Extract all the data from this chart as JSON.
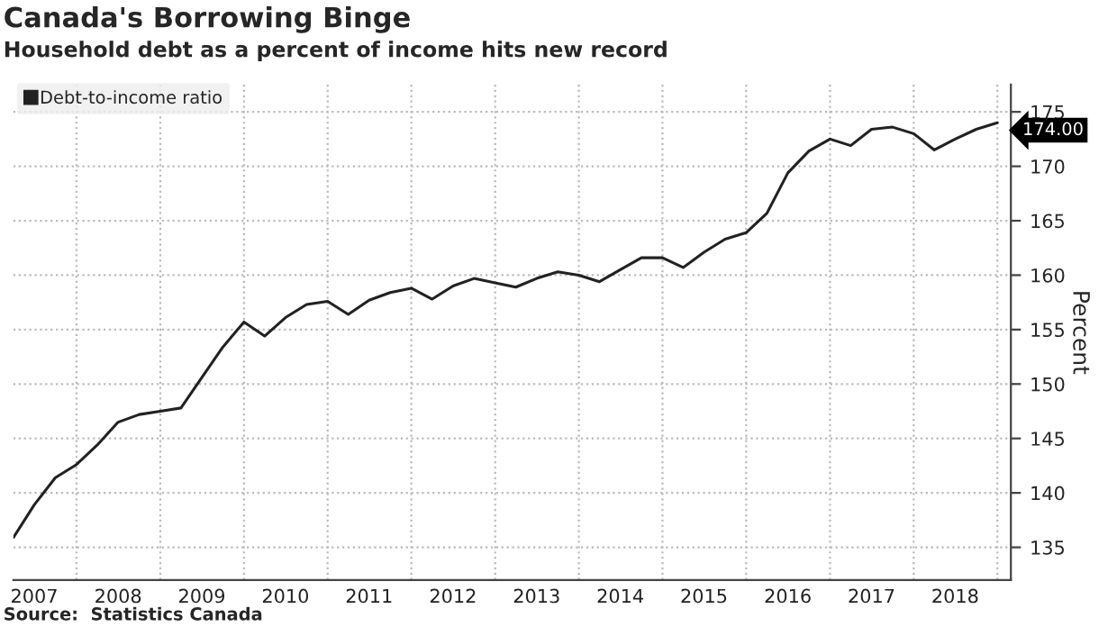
{
  "chart_data": {
    "type": "line",
    "title": "Canada's Borrowing Binge",
    "subtitle": "Household debt as a percent of income hits new record",
    "ylabel": "Percent",
    "annotations": [
      "Source:  Statistics Canada"
    ],
    "x": [
      "2007-04",
      "2007-07",
      "2007-10",
      "2008-01",
      "2008-04",
      "2008-07",
      "2008-10",
      "2009-01",
      "2009-04",
      "2009-07",
      "2009-10",
      "2010-01",
      "2010-04",
      "2010-07",
      "2010-10",
      "2011-01",
      "2011-04",
      "2011-07",
      "2011-10",
      "2012-01",
      "2012-04",
      "2012-07",
      "2012-10",
      "2013-01",
      "2013-04",
      "2013-07",
      "2013-10",
      "2014-01",
      "2014-04",
      "2014-07",
      "2014-10",
      "2015-01",
      "2015-04",
      "2015-07",
      "2015-10",
      "2016-01",
      "2016-04",
      "2016-07",
      "2016-10",
      "2017-01",
      "2017-04",
      "2017-07",
      "2017-10",
      "2018-01",
      "2018-04",
      "2018-07",
      "2018-10",
      "2019-01"
    ],
    "series": [
      {
        "name": "Debt-to-income ratio",
        "color": "#222222",
        "values": [
          135.9,
          138.9,
          141.4,
          142.6,
          144.4,
          146.5,
          147.2,
          147.5,
          147.8,
          150.6,
          153.4,
          155.7,
          154.4,
          156.1,
          157.3,
          157.6,
          156.4,
          157.7,
          158.4,
          158.8,
          157.8,
          159.0,
          159.7,
          159.3,
          158.9,
          159.7,
          160.3,
          160.0,
          159.4,
          160.5,
          161.6,
          161.6,
          160.7,
          162.1,
          163.3,
          163.9,
          165.7,
          169.4,
          171.4,
          172.5,
          171.9,
          173.4,
          173.6,
          173.0,
          171.5,
          172.5,
          173.4,
          174.0
        ],
        "value_labels": [
          null,
          null,
          null,
          null,
          null,
          null,
          null,
          null,
          null,
          null,
          null,
          null,
          null,
          null,
          null,
          null,
          null,
          null,
          null,
          null,
          null,
          null,
          null,
          null,
          null,
          null,
          null,
          null,
          null,
          null,
          null,
          null,
          null,
          null,
          null,
          null,
          null,
          null,
          null,
          null,
          null,
          null,
          null,
          null,
          null,
          null,
          null,
          "174.00"
        ]
      }
    ],
    "xlim": [
      "2007-04",
      "2019-03"
    ],
    "xticks": [
      {
        "value": "2008-01",
        "label": null
      },
      {
        "value": "2009-01",
        "label": null
      },
      {
        "value": "2010-01",
        "label": null
      },
      {
        "value": "2011-01",
        "label": null
      },
      {
        "value": "2012-01",
        "label": null
      },
      {
        "value": "2013-01",
        "label": null
      },
      {
        "value": "2014-01",
        "label": null
      },
      {
        "value": "2015-01",
        "label": null
      },
      {
        "value": "2016-01",
        "label": null
      },
      {
        "value": "2017-01",
        "label": null
      },
      {
        "value": "2018-01",
        "label": null
      },
      {
        "value": "2019-01",
        "label": null
      },
      {
        "value": "2007-07",
        "label": "2007"
      },
      {
        "value": "2008-07",
        "label": "2008"
      },
      {
        "value": "2009-07",
        "label": "2009"
      },
      {
        "value": "2010-07",
        "label": "2010"
      },
      {
        "value": "2011-07",
        "label": "2011"
      },
      {
        "value": "2012-07",
        "label": "2012"
      },
      {
        "value": "2013-07",
        "label": "2013"
      },
      {
        "value": "2014-07",
        "label": "2014"
      },
      {
        "value": "2015-07",
        "label": "2015"
      },
      {
        "value": "2016-07",
        "label": "2016"
      },
      {
        "value": "2017-07",
        "label": "2017"
      },
      {
        "value": "2018-07",
        "label": "2018"
      }
    ],
    "ylim": [
      132,
      177.5
    ],
    "yticks": [
      135,
      140,
      145,
      150,
      155,
      160,
      165,
      170,
      175
    ],
    "grid": true,
    "legend": "top left",
    "marker": "none",
    "line_style": "solid"
  }
}
